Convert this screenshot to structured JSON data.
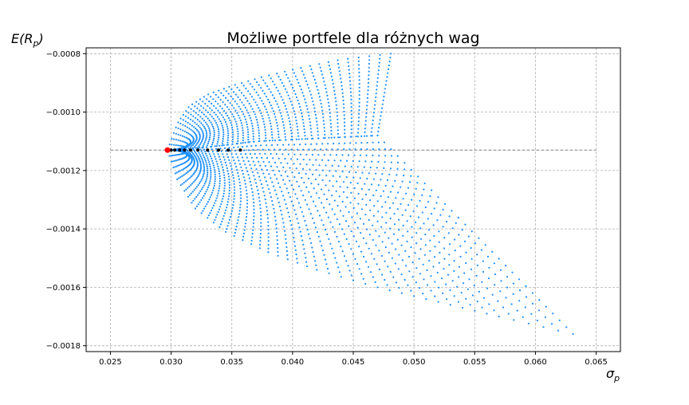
{
  "chart_data": {
    "type": "scatter",
    "title": "Możliwe portfele dla różnych wag",
    "xlabel": {
      "symbol": "σ",
      "subscript": "p"
    },
    "ylabel": {
      "prefix": "E(R",
      "subscript": "p",
      "suffix": ")"
    },
    "xlim": [
      0.023,
      0.067
    ],
    "ylim": [
      -0.00182,
      -0.00078
    ],
    "x_ticks": [
      0.025,
      0.03,
      0.035,
      0.04,
      0.045,
      0.05,
      0.055,
      0.06,
      0.065
    ],
    "x_tick_labels": [
      "0.025",
      "0.030",
      "0.035",
      "0.040",
      "0.045",
      "0.050",
      "0.055",
      "0.060",
      "0.065"
    ],
    "y_ticks": [
      -0.0008,
      -0.001,
      -0.0012,
      -0.0014,
      -0.0016,
      -0.0018
    ],
    "y_tick_labels": [
      "−0.0008",
      "−0.0010",
      "−0.0012",
      "−0.0014",
      "−0.0016",
      "−0.0018"
    ],
    "grid": true,
    "min_variance_point": {
      "x": 0.0297,
      "y": -0.00113,
      "color": "#ff0000"
    },
    "reference_line": {
      "y": -0.00113,
      "x_start": 0.025,
      "x_end": 0.065,
      "color": "#808080",
      "style": "dashed"
    },
    "highlight_points": {
      "color": "#000000",
      "x": [
        0.03,
        0.0303,
        0.0307,
        0.0311,
        0.0316,
        0.0322,
        0.033,
        0.0339,
        0.0347,
        0.0357
      ],
      "y": [
        -0.00113,
        -0.00113,
        -0.00113,
        -0.00113,
        -0.00113,
        -0.00113,
        -0.00113,
        -0.00113,
        -0.00113,
        -0.00113
      ]
    },
    "portfolio_cloud": {
      "color": "#1e90ff",
      "lobes": [
        {
          "name": "upper-tip",
          "x": [
            0.0297,
            0.0305,
            0.0315,
            0.033,
            0.035,
            0.0375,
            0.0405,
            0.044,
            0.0481
          ],
          "y": [
            -0.00113,
            -0.00104,
            -0.00098,
            -0.00094,
            -0.00091,
            -0.00088,
            -0.00085,
            -0.00082,
            -0.0008
          ]
        },
        {
          "name": "middle-tip",
          "x": [
            0.0297,
            0.033,
            0.037,
            0.042,
            0.047
          ],
          "y": [
            -0.00113,
            -0.00112,
            -0.0011,
            -0.00109,
            -0.00108
          ]
        },
        {
          "name": "lower-tip",
          "x": [
            0.0297,
            0.0305,
            0.032,
            0.0345,
            0.038,
            0.042,
            0.047,
            0.052,
            0.057,
            0.0631
          ],
          "y": [
            -0.00113,
            -0.00123,
            -0.00133,
            -0.00141,
            -0.00148,
            -0.00154,
            -0.0016,
            -0.00165,
            -0.0017,
            -0.00176
          ]
        }
      ]
    }
  }
}
